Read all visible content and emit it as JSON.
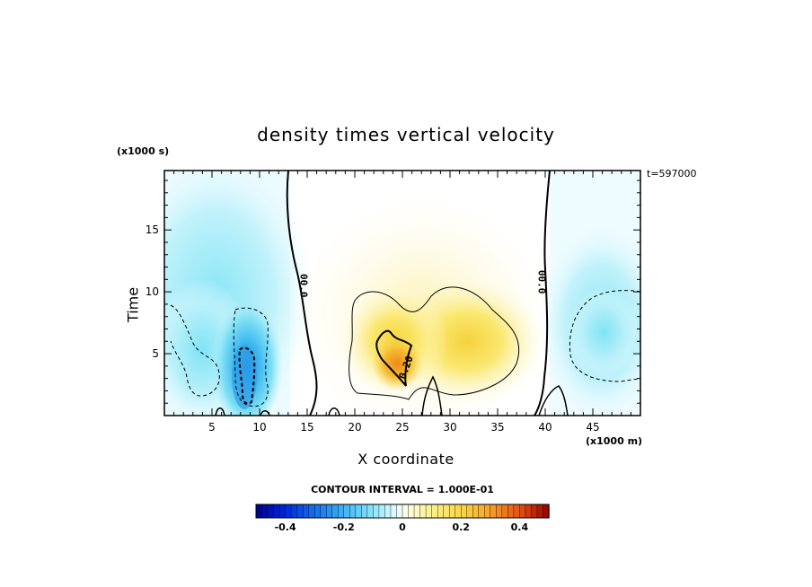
{
  "chart_data": {
    "type": "heatmap",
    "title": "density times vertical velocity",
    "xlabel": "X coordinate",
    "ylabel": "Time",
    "x_unit": "(x1000 m)",
    "y_unit": "(x1000 s)",
    "time_stamp": "t=597000",
    "xlim": [
      0,
      50
    ],
    "ylim": [
      0,
      19.8
    ],
    "x_ticks": [
      "5",
      "10",
      "15",
      "20",
      "25",
      "30",
      "35",
      "40",
      "45"
    ],
    "y_ticks": [
      "5",
      "10",
      "15"
    ],
    "contour_interval_label": "CONTOUR INTERVAL = 1.000E-01",
    "contour_interval": 0.1,
    "contour_labels": [
      {
        "text": "00.0",
        "x": 14.3,
        "y": 10.5
      },
      {
        "text": "00.0",
        "x": 39.3,
        "y": 10.8
      },
      {
        "text": "0.20",
        "x": 25.7,
        "y": 3.8
      }
    ],
    "colorbar": {
      "range": [
        -0.5,
        0.5
      ],
      "tick_labels": [
        "-0.4",
        "-0.2",
        "0",
        "0.2",
        "0.4"
      ],
      "tick_values": [
        -0.4,
        -0.2,
        0,
        0.2,
        0.4
      ]
    },
    "field_features": [
      {
        "x": 3.5,
        "y": 6.0,
        "value": -0.15
      },
      {
        "x": 8.2,
        "y": 3.0,
        "value": -0.3
      },
      {
        "x": 25.0,
        "y": 4.5,
        "value": 0.25
      },
      {
        "x": 31.0,
        "y": 6.0,
        "value": 0.12
      },
      {
        "x": 45.5,
        "y": 7.0,
        "value": -0.1
      },
      {
        "x": 27.0,
        "y": 12.0,
        "value": 0.05
      }
    ]
  }
}
